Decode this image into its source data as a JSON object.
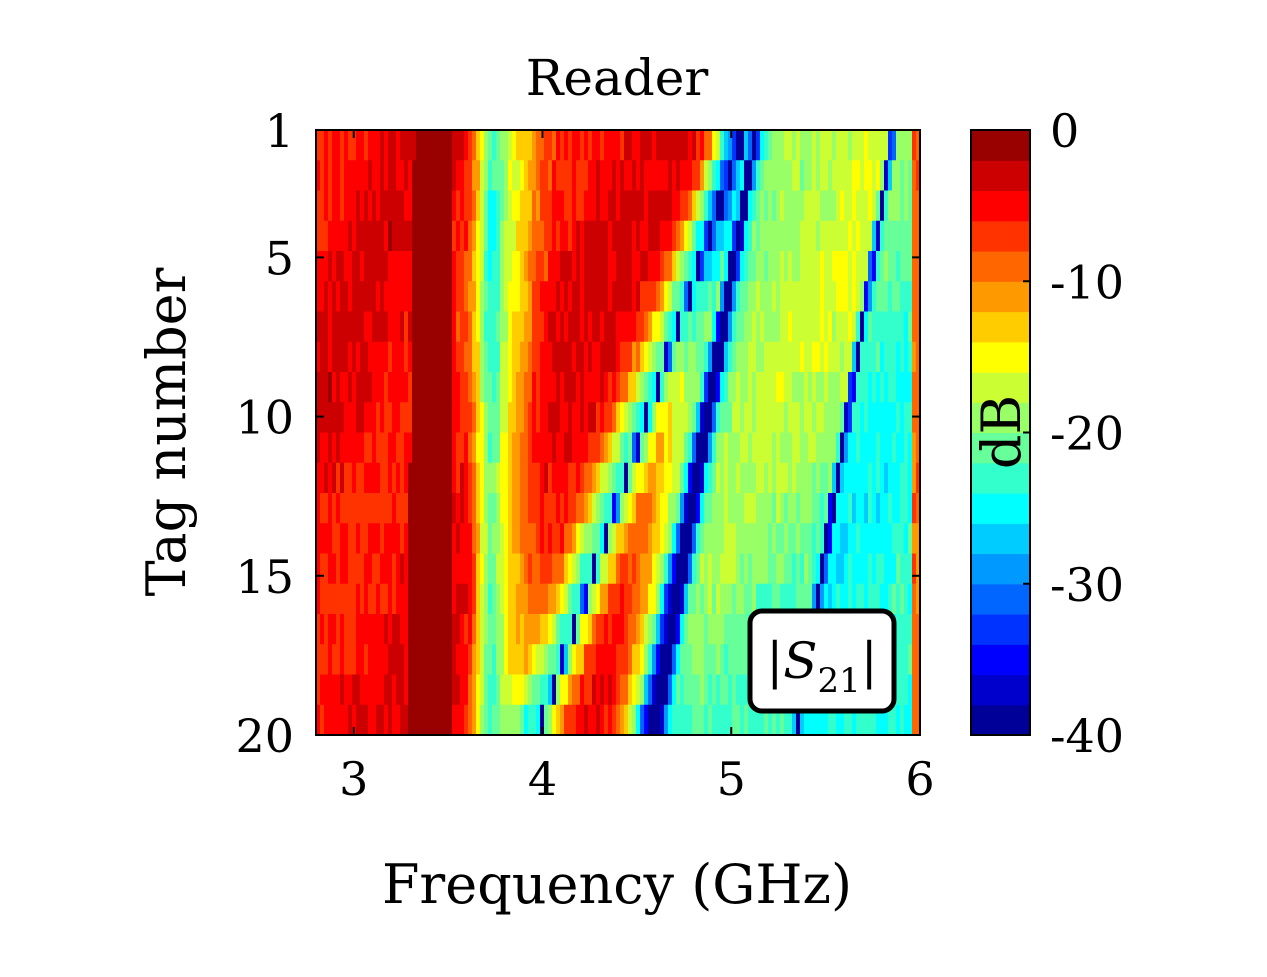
{
  "chart_data": {
    "type": "heatmap",
    "title": "Reader",
    "xlabel": "Frequency (GHz)",
    "ylabel": "Tag number",
    "xlim": [
      2.8,
      6.0
    ],
    "ylim": [
      1,
      20
    ],
    "y_reversed": true,
    "xticks": [
      3,
      4,
      5,
      6
    ],
    "xtick_labels": [
      "3",
      "4",
      "5",
      "6"
    ],
    "yticks": [
      1,
      5,
      10,
      15,
      20
    ],
    "ytick_labels": [
      "1",
      "5",
      "10",
      "15",
      "20"
    ],
    "rows": 20,
    "colorbar": {
      "label": "dB",
      "range": [
        -40,
        0
      ],
      "ticks": [
        0,
        -10,
        -20,
        -30,
        -40
      ],
      "tick_labels": [
        "0",
        "-10",
        "-20",
        "-30",
        "-40"
      ],
      "levels": 20,
      "colormap": "jet"
    },
    "annotation": {
      "text_main": "|S",
      "text_sub": "21",
      "text_close": "|"
    },
    "features": {
      "deep_band": {
        "start": [
          3.32,
          3.52
        ],
        "end": [
          3.28,
          3.52
        ],
        "value_db": -0.5
      },
      "resonance_1": {
        "start_ghz": 5.05,
        "end_ghz": 4.0,
        "min_db": -28
      },
      "resonance_2": {
        "start_ghz": 5.12,
        "end_ghz": 4.58,
        "min_db": -38
      },
      "resonance_3": {
        "start_ghz": 5.85,
        "end_ghz": 5.35,
        "min_db": -35
      }
    },
    "grid": false
  }
}
